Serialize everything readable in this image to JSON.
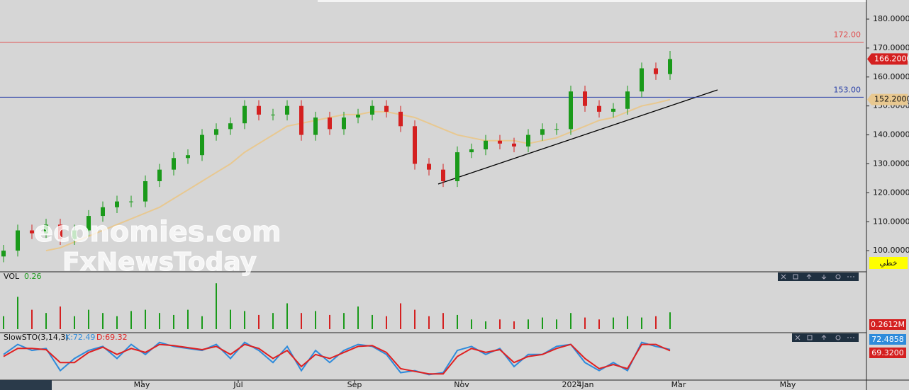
{
  "chart_data": {
    "type": "candlestick",
    "open": [
      98,
      100,
      107,
      106,
      109,
      104,
      107,
      112,
      115,
      117,
      117,
      124,
      128,
      132,
      133,
      140,
      142,
      144,
      150,
      147,
      147,
      150,
      140,
      146,
      142,
      146,
      147,
      150,
      148,
      143,
      130,
      128,
      124,
      134,
      135,
      138,
      137,
      136,
      140,
      142,
      142,
      155,
      150,
      148,
      149,
      155,
      163,
      161
    ],
    "high": [
      102,
      109,
      109,
      111,
      111,
      109,
      114,
      117,
      119,
      119,
      126,
      130,
      134,
      135,
      142,
      144,
      146,
      152,
      152,
      149,
      152,
      152,
      148,
      148,
      148,
      149,
      152,
      152,
      150,
      145,
      132,
      130,
      136,
      137,
      140,
      140,
      139,
      142,
      144,
      144,
      157,
      157,
      152,
      151,
      157,
      165,
      165,
      169
    ],
    "low": [
      96,
      98,
      104,
      104,
      102,
      102,
      105,
      110,
      113,
      115,
      115,
      122,
      126,
      130,
      131,
      138,
      140,
      142,
      145,
      145,
      145,
      138,
      138,
      140,
      140,
      144,
      145,
      146,
      141,
      128,
      126,
      122,
      122,
      132,
      133,
      135,
      134,
      134,
      138,
      140,
      140,
      148,
      146,
      146,
      147,
      153,
      159,
      159
    ],
    "close": [
      100,
      107,
      106,
      109,
      104,
      107,
      112,
      115,
      117,
      117,
      124,
      128,
      132,
      133,
      140,
      142,
      144,
      150,
      147,
      147,
      150,
      140,
      146,
      142,
      146,
      147,
      150,
      148,
      143,
      130,
      128,
      124,
      134,
      135,
      138,
      137,
      136,
      140,
      142,
      142,
      155,
      150,
      148,
      149,
      155,
      163,
      161,
      166.2
    ],
    "up_color": "#1a9a1a",
    "down_color": "#d42020",
    "xlim": [
      -0.25,
      60.85
    ],
    "xticks": [
      {
        "value": 9.75,
        "label": "May"
      },
      {
        "value": 16.55,
        "label": "Jul"
      },
      {
        "value": 24.75,
        "label": "Sep"
      },
      {
        "value": 32.3,
        "label": "Nov"
      },
      {
        "value": 40.5,
        "label": "2024Jan"
      },
      {
        "value": 47.6,
        "label": "Mar"
      },
      {
        "value": 55.3,
        "label": "May"
      }
    ],
    "ylim": [
      92.7,
      186.6
    ],
    "yticks": [
      {
        "value": 100,
        "label": "100.0000"
      },
      {
        "value": 110,
        "label": "110.0000"
      },
      {
        "value": 120,
        "label": "120.0000"
      },
      {
        "value": 130,
        "label": "130.0000"
      },
      {
        "value": 140,
        "label": "140.0000"
      },
      {
        "value": 150,
        "label": "150.0000"
      },
      {
        "value": 160,
        "label": "160.0000"
      },
      {
        "value": 170,
        "label": "170.0000"
      },
      {
        "value": 180,
        "label": "180.0000"
      }
    ],
    "ma": {
      "color": "#e8c890",
      "values": [
        null,
        null,
        null,
        100,
        101,
        103,
        105,
        107,
        109,
        111,
        113,
        115,
        118,
        121,
        124,
        127,
        130,
        134,
        137,
        140,
        143,
        144,
        145,
        146,
        147,
        147,
        148,
        148,
        147,
        146,
        144,
        142,
        140,
        139,
        138,
        138,
        138,
        137,
        138,
        139,
        141,
        143,
        145,
        146,
        148,
        150,
        151,
        152.2
      ]
    },
    "hlines": [
      {
        "value": 172,
        "label": "172.00",
        "color": "#e05050"
      },
      {
        "value": 153,
        "label": "153.00",
        "color": "#2a40a8"
      }
    ],
    "price_tag": {
      "value": 166.2,
      "label": "166.2000",
      "color": "#d42020"
    },
    "ma_tag": {
      "value": 152.2,
      "label": "152.2000",
      "color": "#e8c890"
    },
    "axis_tag": "خطي",
    "watermark": [
      "economies.com",
      "FxNewsToday"
    ],
    "volume": {
      "title": "VOL",
      "last": 0.26,
      "tag": "0.2612M",
      "ylim": [
        0,
        0.8
      ],
      "values": [
        0.2,
        0.5,
        0.3,
        0.25,
        0.35,
        0.2,
        0.3,
        0.25,
        0.2,
        0.28,
        0.3,
        0.25,
        0.22,
        0.3,
        0.2,
        0.71,
        0.3,
        0.28,
        0.22,
        0.25,
        0.4,
        0.25,
        0.28,
        0.22,
        0.25,
        0.35,
        0.22,
        0.2,
        0.4,
        0.3,
        0.2,
        0.25,
        0.22,
        0.15,
        0.12,
        0.15,
        0.12,
        0.15,
        0.18,
        0.15,
        0.25,
        0.18,
        0.15,
        0.18,
        0.2,
        0.18,
        0.2,
        0.26
      ]
    },
    "stochastic": {
      "title": "SlowSTO(3,14,3)",
      "k_label": "K:72.49",
      "d_label": "D:69.32",
      "k_tag": "72.4858",
      "d_tag": "69.3200",
      "ylim": [
        0,
        100
      ],
      "k": {
        "color": "#2e8bdb",
        "values": [
          60,
          85,
          70,
          75,
          20,
          50,
          70,
          80,
          50,
          85,
          60,
          90,
          80,
          75,
          70,
          85,
          50,
          90,
          70,
          40,
          80,
          20,
          70,
          40,
          70,
          85,
          80,
          60,
          15,
          20,
          10,
          15,
          70,
          80,
          60,
          75,
          30,
          60,
          60,
          80,
          85,
          40,
          20,
          40,
          20,
          90,
          80,
          72.49
        ]
      },
      "d": {
        "color": "#e02020",
        "values": [
          55,
          75,
          75,
          72,
          40,
          40,
          65,
          78,
          60,
          75,
          65,
          85,
          82,
          77,
          72,
          80,
          60,
          85,
          75,
          50,
          70,
          30,
          60,
          50,
          65,
          80,
          82,
          65,
          25,
          18,
          12,
          12,
          55,
          75,
          65,
          72,
          40,
          55,
          60,
          75,
          85,
          50,
          25,
          35,
          25,
          85,
          85,
          69.32
        ]
      }
    }
  }
}
